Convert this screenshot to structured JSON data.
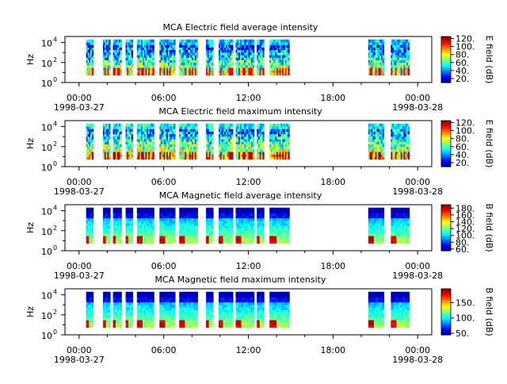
{
  "x_ticks": [
    {
      "hour": 0,
      "label": "00:00",
      "date": "1998-03-27"
    },
    {
      "hour": 6,
      "label": "06:00",
      "date": ""
    },
    {
      "hour": 12,
      "label": "12:00",
      "date": ""
    },
    {
      "hour": 18,
      "label": "18:00",
      "date": ""
    },
    {
      "hour": 24,
      "label": "00:00",
      "date": "1998-03-28"
    }
  ],
  "y_ticks": [
    {
      "exp": 0,
      "label": "10",
      "sup": "0"
    },
    {
      "exp": 2,
      "label": "10",
      "sup": "2"
    },
    {
      "exp": 4,
      "label": "10",
      "sup": "4"
    }
  ],
  "chart_data": [
    {
      "type": "heatmap",
      "title": "MCA  Electric field average intensity",
      "ylabel": "Hz",
      "colorbar_label": "E field (dB)",
      "colorbar_range": [
        10,
        125
      ],
      "colorbar_ticks": [
        "20.",
        "40.",
        "60.",
        "80.",
        "100.",
        "120."
      ],
      "colorbar_tick_values": [
        20,
        40,
        60,
        80,
        100,
        120
      ],
      "xlim_hours": [
        -1,
        25
      ],
      "ylim_log10": [
        0,
        4.6
      ],
      "data_intervals_hours": [
        [
          0.5,
          1.0
        ],
        [
          1.7,
          2.2
        ],
        [
          2.4,
          3.0
        ],
        [
          3.3,
          3.8
        ],
        [
          4.1,
          5.3
        ],
        [
          5.7,
          6.8
        ],
        [
          7.1,
          8.4
        ],
        [
          9.0,
          9.5
        ],
        [
          9.9,
          10.9
        ],
        [
          11.1,
          12.4
        ],
        [
          12.6,
          13.1
        ],
        [
          13.5,
          14.9
        ],
        [
          20.5,
          21.6
        ],
        [
          22.1,
          23.4
        ]
      ]
    },
    {
      "type": "heatmap",
      "title": "MCA  Electric field maximum intensity",
      "ylabel": "Hz",
      "colorbar_label": "E field (dB)",
      "colorbar_range": [
        10,
        125
      ],
      "colorbar_ticks": [
        "20.",
        "40.",
        "60.",
        "80.",
        "100.",
        "120."
      ],
      "colorbar_tick_values": [
        20,
        40,
        60,
        80,
        100,
        120
      ],
      "xlim_hours": [
        -1,
        25
      ],
      "ylim_log10": [
        0,
        4.6
      ],
      "data_intervals_hours": [
        [
          0.5,
          1.0
        ],
        [
          1.7,
          2.2
        ],
        [
          2.4,
          3.0
        ],
        [
          3.3,
          3.8
        ],
        [
          4.1,
          5.3
        ],
        [
          5.7,
          6.8
        ],
        [
          7.1,
          8.4
        ],
        [
          9.0,
          9.5
        ],
        [
          9.9,
          10.9
        ],
        [
          11.1,
          12.4
        ],
        [
          12.6,
          13.1
        ],
        [
          13.5,
          14.9
        ],
        [
          20.5,
          21.6
        ],
        [
          22.1,
          23.4
        ]
      ]
    },
    {
      "type": "heatmap",
      "title": "MCA  Magnetic field average intensity",
      "ylabel": "Hz",
      "colorbar_label": "B field (dB)",
      "colorbar_range": [
        55,
        190
      ],
      "colorbar_ticks": [
        "60.",
        "80.",
        "100.",
        "120.",
        "140.",
        "160.",
        "180."
      ],
      "colorbar_tick_values": [
        60,
        80,
        100,
        120,
        140,
        160,
        180
      ],
      "xlim_hours": [
        -1,
        25
      ],
      "ylim_log10": [
        0,
        4.6
      ],
      "data_intervals_hours": [
        [
          0.5,
          1.0
        ],
        [
          1.7,
          2.2
        ],
        [
          2.4,
          3.0
        ],
        [
          3.3,
          3.8
        ],
        [
          4.1,
          5.3
        ],
        [
          5.7,
          6.8
        ],
        [
          7.1,
          8.4
        ],
        [
          9.0,
          9.5
        ],
        [
          9.9,
          10.9
        ],
        [
          11.1,
          12.4
        ],
        [
          12.6,
          13.1
        ],
        [
          13.5,
          14.9
        ],
        [
          20.5,
          21.6
        ],
        [
          22.1,
          23.4
        ]
      ]
    },
    {
      "type": "heatmap",
      "title": "MCA  Magnetic field maximum intensity",
      "ylabel": "Hz",
      "colorbar_label": "B field (dB)",
      "colorbar_range": [
        45,
        195
      ],
      "colorbar_ticks": [
        "50.",
        "100.",
        "150."
      ],
      "colorbar_tick_values": [
        50,
        100,
        150
      ],
      "xlim_hours": [
        -1,
        25
      ],
      "ylim_log10": [
        0,
        4.6
      ],
      "data_intervals_hours": [
        [
          0.5,
          1.0
        ],
        [
          1.7,
          2.2
        ],
        [
          2.4,
          3.0
        ],
        [
          3.3,
          3.8
        ],
        [
          4.1,
          5.3
        ],
        [
          5.7,
          6.8
        ],
        [
          7.1,
          8.4
        ],
        [
          9.0,
          9.5
        ],
        [
          9.9,
          10.9
        ],
        [
          11.1,
          12.4
        ],
        [
          12.6,
          13.1
        ],
        [
          13.5,
          14.9
        ],
        [
          20.5,
          21.6
        ],
        [
          22.1,
          23.4
        ]
      ]
    }
  ]
}
